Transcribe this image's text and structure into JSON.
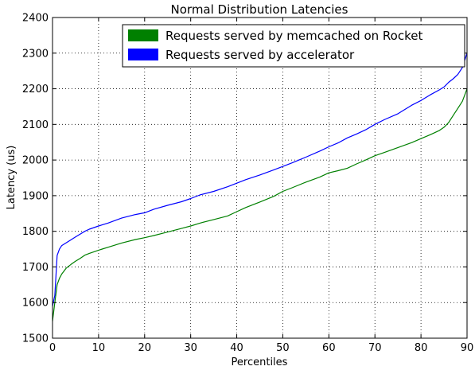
{
  "chart_data": {
    "type": "line",
    "title": "Normal Distribution Latencies",
    "xlabel": "Percentiles",
    "ylabel": "Latency (us)",
    "xlim": [
      0,
      90
    ],
    "ylim": [
      1500,
      2400
    ],
    "xticks": [
      0,
      10,
      20,
      30,
      40,
      50,
      60,
      70,
      80,
      90
    ],
    "yticks": [
      1500,
      1600,
      1700,
      1800,
      1900,
      2000,
      2100,
      2200,
      2300,
      2400
    ],
    "grid": true,
    "legend_position": "top-right",
    "series": [
      {
        "name": "Requests served by memcached on Rocket",
        "color": "#008000",
        "x": [
          0,
          0.5,
          1,
          1.5,
          2,
          3,
          4,
          5,
          6,
          7,
          8,
          10,
          12,
          15,
          18,
          20,
          22,
          25,
          28,
          30,
          32,
          35,
          38,
          40,
          42,
          45,
          48,
          50,
          52,
          55,
          58,
          60,
          62,
          64,
          66,
          68,
          70,
          72,
          75,
          78,
          80,
          82,
          84,
          85,
          86,
          87,
          88,
          89,
          90
        ],
        "y": [
          1548,
          1600,
          1650,
          1668,
          1680,
          1697,
          1707,
          1716,
          1724,
          1733,
          1738,
          1747,
          1755,
          1767,
          1777,
          1782,
          1788,
          1798,
          1808,
          1815,
          1823,
          1833,
          1843,
          1855,
          1867,
          1882,
          1898,
          1912,
          1922,
          1938,
          1952,
          1964,
          1970,
          1977,
          1989,
          2000,
          2012,
          2021,
          2035,
          2049,
          2060,
          2071,
          2083,
          2092,
          2105,
          2125,
          2145,
          2165,
          2200
        ]
      },
      {
        "name": "Requests served by accelerator",
        "color": "#0000ff",
        "x": [
          0,
          0.5,
          1,
          1.5,
          2,
          3,
          4,
          5,
          6,
          7,
          8,
          10,
          12,
          15,
          18,
          20,
          22,
          25,
          28,
          30,
          32,
          35,
          38,
          40,
          42,
          45,
          48,
          50,
          52,
          55,
          58,
          60,
          62,
          64,
          66,
          68,
          70,
          72,
          75,
          78,
          80,
          82,
          84,
          85,
          86,
          87,
          88,
          89,
          90
        ],
        "y": [
          1590,
          1620,
          1732,
          1750,
          1760,
          1768,
          1776,
          1784,
          1792,
          1800,
          1806,
          1815,
          1823,
          1837,
          1847,
          1852,
          1862,
          1873,
          1883,
          1892,
          1902,
          1912,
          1925,
          1935,
          1945,
          1958,
          1972,
          1982,
          1992,
          2008,
          2025,
          2037,
          2048,
          2062,
          2073,
          2085,
          2100,
          2113,
          2130,
          2154,
          2167,
          2183,
          2197,
          2205,
          2218,
          2228,
          2240,
          2260,
          2300
        ]
      }
    ]
  }
}
